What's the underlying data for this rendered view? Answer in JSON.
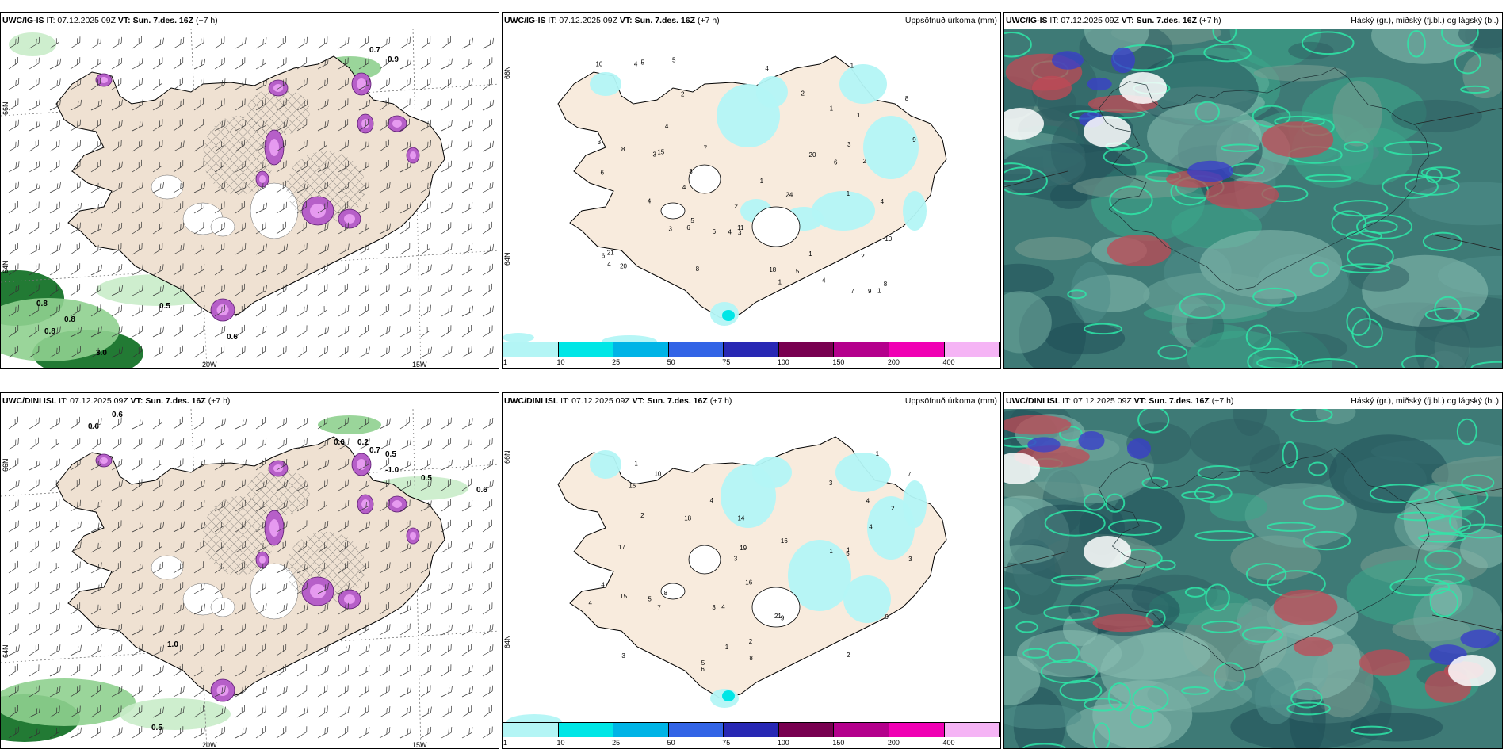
{
  "panels": [
    {
      "id": "p1",
      "model": "UWC/IG-IS",
      "it": " IT: 07.12.2025 09Z ",
      "vt": "VT: Sun. 7.des. 16Z",
      "lead": " (+7 h)",
      "right": ""
    },
    {
      "id": "p2",
      "model": "UWC/IG-IS",
      "it": " IT: 07.12.2025 09Z ",
      "vt": "VT: Sun. 7.des. 16Z",
      "lead": " (+7 h)",
      "right": "Uppsöfnuð úrkoma (mm)"
    },
    {
      "id": "p3",
      "model": "UWC/IG-IS",
      "it": " IT: 07.12.2025 09Z ",
      "vt": "VT: Sun. 7.des. 16Z",
      "lead": " (+7 h)",
      "right": "Háský (gr.), miðský (fj.bl.) og lágský (bl.)"
    },
    {
      "id": "p4",
      "model": "UWC/DINI ISL",
      "it": " IT: 07.12.2025 09Z ",
      "vt": "VT: Sun. 7.des. 16Z",
      "lead": " (+7 h)",
      "right": ""
    },
    {
      "id": "p5",
      "model": "UWC/DINI ISL",
      "it": " IT: 07.12.2025 09Z ",
      "vt": "VT: Sun. 7.des. 16Z",
      "lead": " (+7 h)",
      "right": "Uppsöfnuð úrkoma (mm)"
    },
    {
      "id": "p6",
      "model": "UWC/DINI ISL",
      "it": " IT: 07.12.2025 09Z ",
      "vt": "VT: Sun. 7.des. 16Z",
      "lead": " (+7 h)",
      "right": "Háský (gr.), miðský (fj.bl.) og lágský (bl.)"
    }
  ],
  "axis_labels": {
    "lon_20": "20W",
    "lon_15": "15W",
    "lat_66": "66N",
    "lat_64": "64N"
  },
  "legend": {
    "colors": [
      "#b3f5f5",
      "#00e6e6",
      "#00b4e6",
      "#3264e6",
      "#2828b4",
      "#780050",
      "#b4008c",
      "#f000b4",
      "#f5b4f5"
    ],
    "ticks": [
      "1",
      "10",
      "25",
      "50",
      "75",
      "100",
      "150",
      "200",
      "400"
    ]
  },
  "precip_values_top": [
    "2",
    "3",
    "4",
    "1",
    "1",
    "2",
    "4",
    "4",
    "6",
    "6",
    "2",
    "4",
    "10",
    "7",
    "3",
    "1",
    "1",
    "9",
    "8",
    "7",
    "9",
    "15",
    "5",
    "3",
    "2",
    "20",
    "18",
    "21",
    "1",
    "6",
    "5",
    "6",
    "20",
    "10",
    "1",
    "3",
    "8",
    "5",
    "4",
    "8",
    "6",
    "8",
    "4",
    "4",
    "3",
    "4",
    "11",
    "4",
    "5",
    "2",
    "1",
    "3",
    "24",
    "1"
  ],
  "precip_values_bottom": [
    "1",
    "2",
    "1",
    "16",
    "2",
    "4",
    "3",
    "5",
    "4",
    "3",
    "7",
    "10",
    "5",
    "2",
    "3",
    "7",
    "9",
    "14",
    "17",
    "16",
    "21",
    "15",
    "8",
    "5",
    "3",
    "9",
    "1",
    "2",
    "1",
    "4",
    "4",
    "8",
    "6",
    "3",
    "15",
    "18",
    "1",
    "4",
    "4",
    "19"
  ],
  "wind_values_top": [
    "0.7",
    "0.9",
    "0.8",
    "0.8",
    "0.5",
    "0.8",
    "3.0",
    "0.6"
  ],
  "wind_values_bottom": [
    "0.6",
    "0.6",
    "0.6",
    "0.2",
    "0.7",
    "0.5",
    "-1.0",
    "0.5",
    "1.0",
    "0.5",
    "0.6"
  ]
}
